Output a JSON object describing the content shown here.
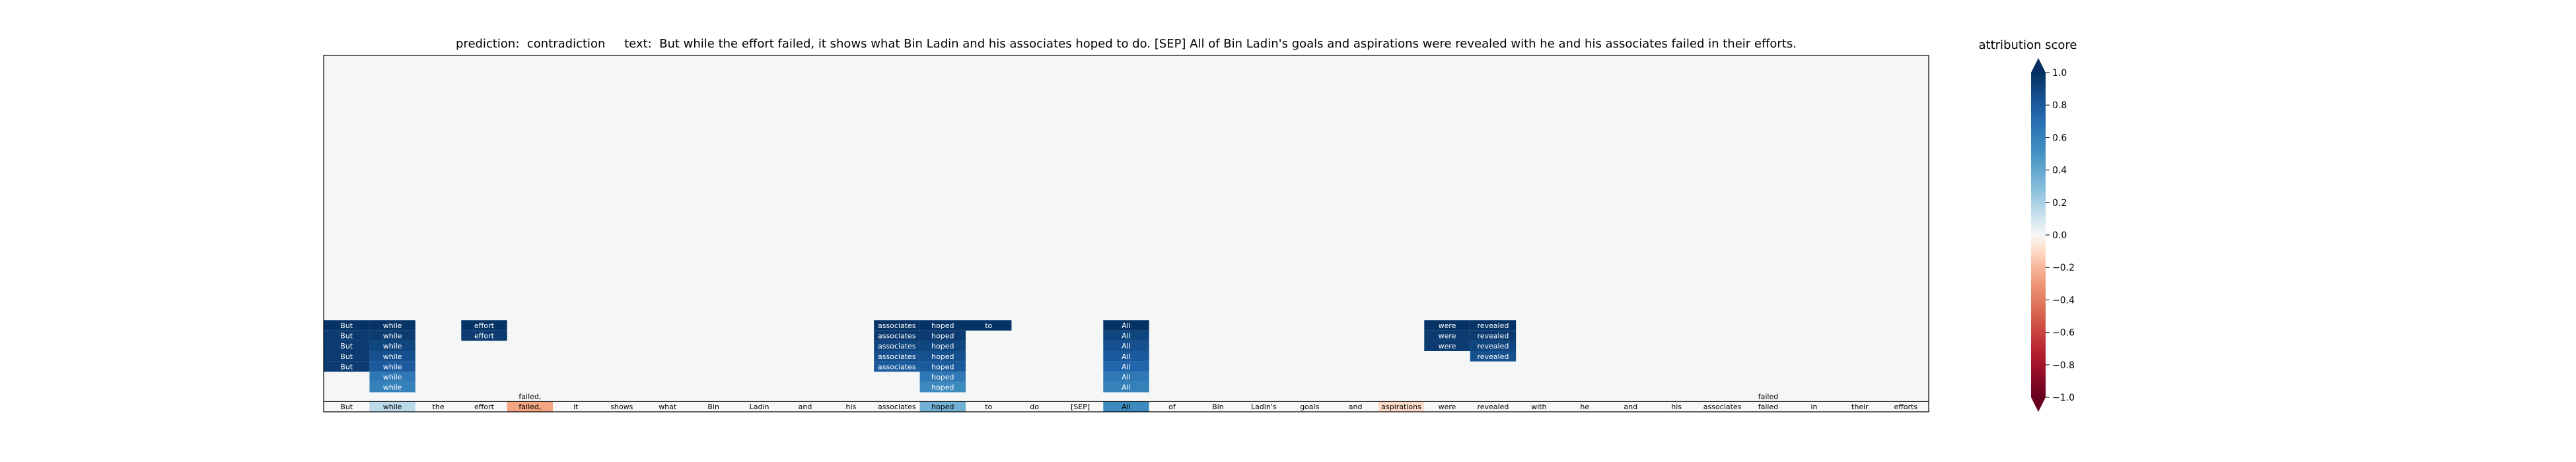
{
  "chart_data": {
    "type": "heatmap",
    "title_prefix": "prediction:",
    "prediction": "contradiction",
    "text_prefix": "text:",
    "text": "But while the effort failed, it shows what Bin Ladin and his associates hoped to do. [SEP] All of Bin Ladin's goals and aspirations were revealed with he and his associates failed in their efforts.",
    "tokens": [
      "But",
      "while",
      "the",
      "effort",
      "failed,",
      "it",
      "shows",
      "what",
      "Bin",
      "Ladin",
      "and",
      "his",
      "associates",
      "hoped",
      "to",
      "do",
      "[SEP]",
      "All",
      "of",
      "Bin",
      "Ladin's",
      "goals",
      "and",
      "aspirations",
      "were",
      "revealed",
      "with",
      "he",
      "and",
      "his",
      "associates",
      "failed",
      "in",
      "their",
      "efforts"
    ],
    "token_scores": [
      0,
      0.15,
      0,
      0,
      -0.25,
      0,
      0,
      0,
      0,
      0,
      0,
      0,
      0,
      0.35,
      0,
      0,
      0,
      0.55,
      0,
      0,
      0,
      0,
      0,
      -0.1,
      0,
      0,
      0,
      0,
      0,
      0,
      0,
      0,
      0,
      0,
      0
    ],
    "token_labels_above": [
      {
        "index": 4,
        "text": "failed,"
      },
      {
        "index": 31,
        "text": "failed"
      }
    ],
    "rows_from_bottom": [
      [
        {
          "i": 1,
          "t": "while",
          "v": 0.6
        },
        {
          "i": 13,
          "t": "hoped",
          "v": 0.55
        },
        {
          "i": 17,
          "t": "All",
          "v": 0.6
        }
      ],
      [
        {
          "i": 1,
          "t": "while",
          "v": 0.65
        },
        {
          "i": 13,
          "t": "hoped",
          "v": 0.65
        },
        {
          "i": 17,
          "t": "All",
          "v": 0.65
        }
      ],
      [
        {
          "i": 0,
          "t": "But",
          "v": 0.95
        },
        {
          "i": 1,
          "t": "while",
          "v": 0.8
        },
        {
          "i": 12,
          "t": "associates",
          "v": 0.8
        },
        {
          "i": 13,
          "t": "hoped",
          "v": 0.8
        },
        {
          "i": 17,
          "t": "All",
          "v": 0.75
        }
      ],
      [
        {
          "i": 0,
          "t": "But",
          "v": 0.95
        },
        {
          "i": 1,
          "t": "while",
          "v": 0.85
        },
        {
          "i": 12,
          "t": "associates",
          "v": 0.85
        },
        {
          "i": 13,
          "t": "hoped",
          "v": 0.85
        },
        {
          "i": 17,
          "t": "All",
          "v": 0.8
        },
        {
          "i": 25,
          "t": "revealed",
          "v": 0.85
        }
      ],
      [
        {
          "i": 0,
          "t": "But",
          "v": 0.95
        },
        {
          "i": 1,
          "t": "while",
          "v": 0.9
        },
        {
          "i": 12,
          "t": "associates",
          "v": 0.9
        },
        {
          "i": 13,
          "t": "hoped",
          "v": 0.9
        },
        {
          "i": 17,
          "t": "All",
          "v": 0.85
        },
        {
          "i": 24,
          "t": "were",
          "v": 0.95
        },
        {
          "i": 25,
          "t": "revealed",
          "v": 0.9
        }
      ],
      [
        {
          "i": 0,
          "t": "But",
          "v": 0.95
        },
        {
          "i": 1,
          "t": "while",
          "v": 0.95
        },
        {
          "i": 3,
          "t": "effort",
          "v": 0.95
        },
        {
          "i": 12,
          "t": "associates",
          "v": 0.95
        },
        {
          "i": 13,
          "t": "hoped",
          "v": 0.95
        },
        {
          "i": 17,
          "t": "All",
          "v": 0.9
        },
        {
          "i": 24,
          "t": "were",
          "v": 0.95
        },
        {
          "i": 25,
          "t": "revealed",
          "v": 0.95
        }
      ],
      [
        {
          "i": 0,
          "t": "But",
          "v": 0.98
        },
        {
          "i": 1,
          "t": "while",
          "v": 0.98
        },
        {
          "i": 3,
          "t": "effort",
          "v": 0.98
        },
        {
          "i": 12,
          "t": "associates",
          "v": 0.98
        },
        {
          "i": 13,
          "t": "hoped",
          "v": 0.98
        },
        {
          "i": 14,
          "t": "to",
          "v": 0.98
        },
        {
          "i": 17,
          "t": "All",
          "v": 0.98
        },
        {
          "i": 24,
          "t": "were",
          "v": 0.98
        },
        {
          "i": 25,
          "t": "revealed",
          "v": 0.98
        }
      ]
    ],
    "colorbar": {
      "label": "attribution score",
      "range": [
        -1.0,
        1.0
      ],
      "ticks": [
        "1.0",
        "0.8",
        "0.6",
        "0.4",
        "0.2",
        "0.0",
        "−0.2",
        "−0.4",
        "−0.6",
        "−0.8",
        "−1.0"
      ],
      "colormap": "RdBu"
    }
  }
}
